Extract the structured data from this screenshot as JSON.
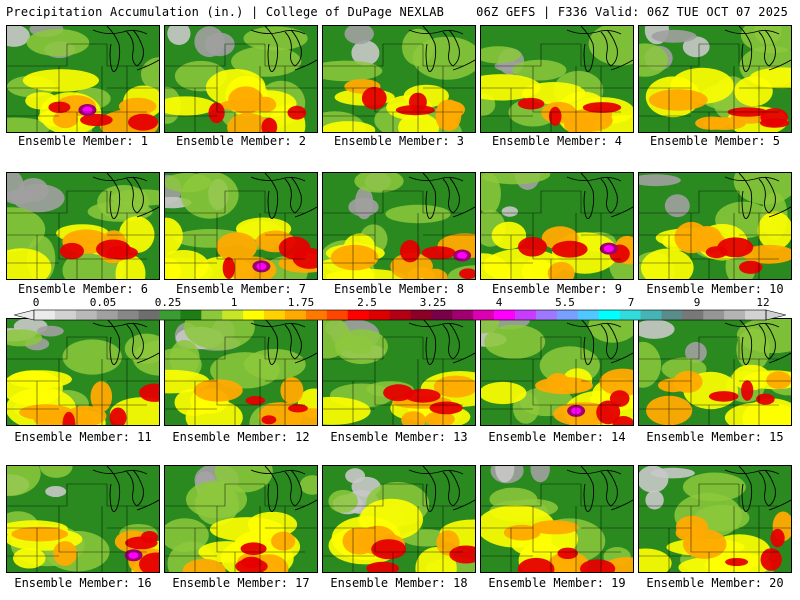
{
  "header": {
    "title": "Precipitation Accumulation (in.) | College of DuPage NEXLAB",
    "run_info": "06Z GEFS | F336 Valid: 06Z TUE OCT 07 2025"
  },
  "legend": {
    "labels": [
      "0",
      "0.05",
      "0.25",
      "1",
      "1.75",
      "2.5",
      "3.25",
      "4",
      "5.5",
      "7",
      "9",
      "12"
    ],
    "colors": [
      "#ebebeb",
      "#d2d2d2",
      "#b9b9b9",
      "#a0a0a0",
      "#878787",
      "#6e6e6e",
      "#3c9b32",
      "#1e7d14",
      "#8cc83c",
      "#c8e628",
      "#ffff00",
      "#ffd200",
      "#ffaa00",
      "#ff7800",
      "#ff4600",
      "#ff0000",
      "#dc0000",
      "#b40014",
      "#8c0028",
      "#780046",
      "#a0006e",
      "#dc00b4",
      "#ff00ff",
      "#c83cff",
      "#a078ff",
      "#78a0ff",
      "#50c8ff",
      "#00ffff",
      "#32dcdc",
      "#46b4b4",
      "#5a8c8c",
      "#787878",
      "#969696",
      "#b4b4b4",
      "#d2d2d2"
    ]
  },
  "panels": [
    {
      "label": "Ensemble Member: 1"
    },
    {
      "label": "Ensemble Member: 2"
    },
    {
      "label": "Ensemble Member: 3"
    },
    {
      "label": "Ensemble Member: 4"
    },
    {
      "label": "Ensemble Member: 5"
    },
    {
      "label": "Ensemble Member: 6"
    },
    {
      "label": "Ensemble Member: 7"
    },
    {
      "label": "Ensemble Member: 8"
    },
    {
      "label": "Ensemble Member: 9"
    },
    {
      "label": "Ensemble Member: 10"
    },
    {
      "label": "Ensemble Member: 11"
    },
    {
      "label": "Ensemble Member: 12"
    },
    {
      "label": "Ensemble Member: 13"
    },
    {
      "label": "Ensemble Member: 14"
    },
    {
      "label": "Ensemble Member: 15"
    },
    {
      "label": "Ensemble Member: 16"
    },
    {
      "label": "Ensemble Member: 17"
    },
    {
      "label": "Ensemble Member: 18"
    },
    {
      "label": "Ensemble Member: 19"
    },
    {
      "label": "Ensemble Member: 20"
    }
  ]
}
